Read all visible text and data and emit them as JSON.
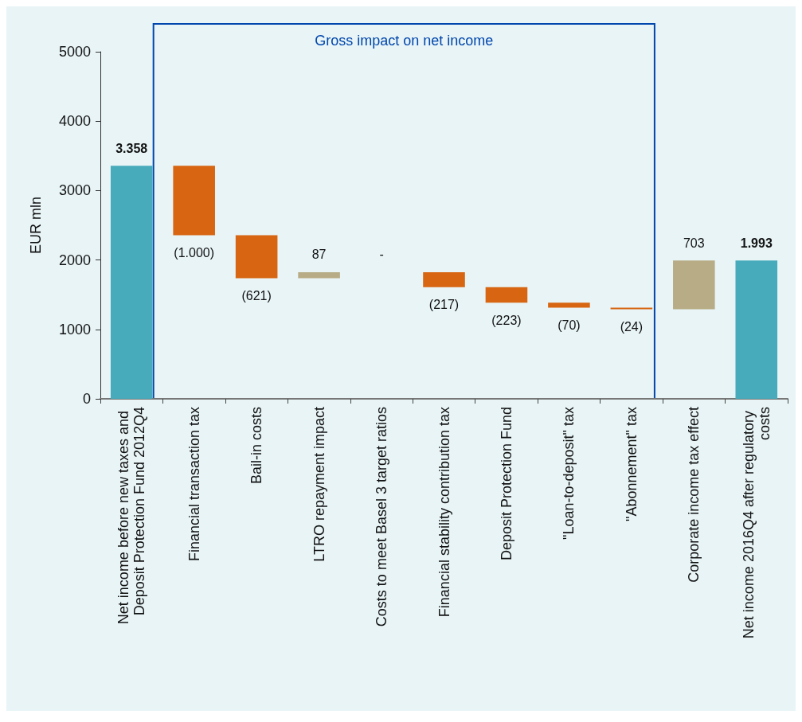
{
  "chart_data": {
    "type": "bar",
    "ylabel": "EUR mln",
    "categories": [
      "Net income before new taxes and Deposit Protection Fund 2012Q4",
      "Financial transaction tax",
      "Bail-in costs",
      "LTRO repayment impact",
      "Costs to meet Basel 3 target ratios",
      "Financial stability contribution tax",
      "Deposit Protection Fund",
      "\"Loan-to-deposit\" tax",
      "\"Abonnement\" tax",
      "Corporate income tax effect",
      "Net income 2016Q4 after regulatory costs"
    ],
    "values": [
      3358,
      -1000,
      -621,
      87,
      null,
      -217,
      -223,
      -70,
      -24,
      703,
      1993
    ],
    "base": [
      0,
      3358,
      2358,
      1737,
      null,
      1824,
      1607,
      1384,
      1314,
      1290,
      0
    ],
    "colors": [
      "#47abbb",
      "#d76511",
      "#d76511",
      "#b7ac85",
      null,
      "#d76511",
      "#d76511",
      "#d76511",
      "#d76511",
      "#b7ac85",
      "#47abbb"
    ],
    "value_labels": [
      "3.358",
      "(1.000)",
      "(621)",
      "87",
      "-",
      "(217)",
      "(223)",
      "(70)",
      "(24)",
      "703",
      "1.993"
    ],
    "ylim": [
      0,
      5000
    ],
    "yticks": [
      0,
      1000,
      2000,
      3000,
      4000,
      5000
    ],
    "grid": false,
    "annotations": [
      "Gross impact on net income"
    ]
  }
}
